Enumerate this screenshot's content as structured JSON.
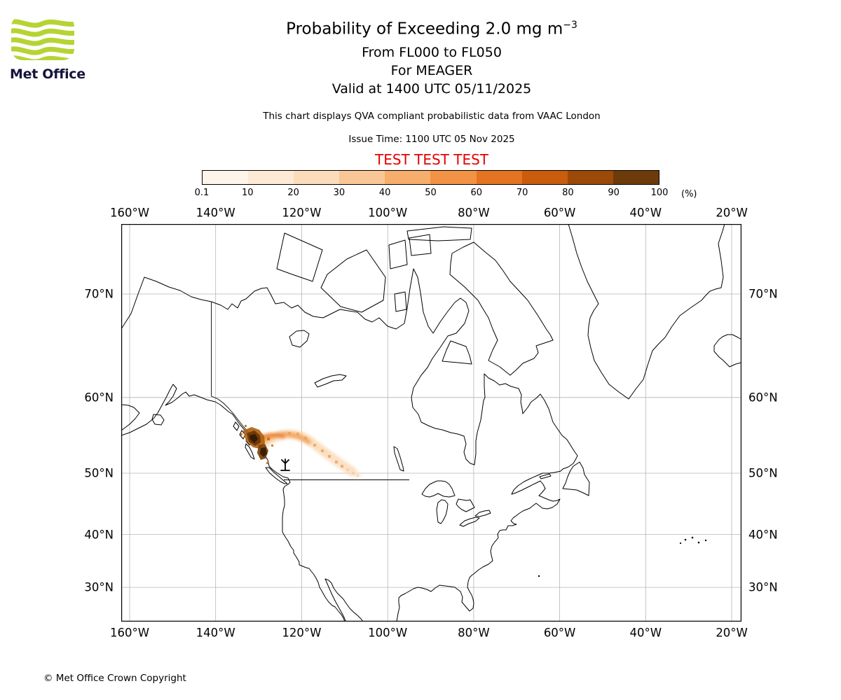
{
  "header": {
    "title_main": "Probability of Exceeding 2.0 mg m",
    "title_sup": "−3",
    "flight_levels": "From FL000 to FL050",
    "volcano": "For MEAGER",
    "valid": "Valid at 1400 UTC 05/11/2025",
    "note": "This chart displays QVA compliant probabilistic data from VAAC London",
    "issue_time": "Issue Time: 1100 UTC 05 Nov 2025",
    "test_banner": "TEST TEST TEST"
  },
  "logo": {
    "text": "Met Office",
    "wave_color": "#b5d434",
    "text_color": "#14143c"
  },
  "colorbar": {
    "labels": [
      "0.1",
      "10",
      "20",
      "30",
      "40",
      "50",
      "60",
      "70",
      "80",
      "90",
      "100"
    ],
    "unit": "(%)",
    "colors": [
      "#fdf5ea",
      "#fcead6",
      "#fbdcba",
      "#f9c795",
      "#f7ad6c",
      "#f29245",
      "#e57422",
      "#ca5c0e",
      "#9d4a08",
      "#6d3b09"
    ]
  },
  "map": {
    "top_labels": [
      "160°W",
      "140°W",
      "120°W",
      "100°W",
      "80°W",
      "60°W",
      "40°W",
      "20°W"
    ],
    "bottom_labels": [
      "160°W",
      "140°W",
      "120°W",
      "100°W",
      "80°W",
      "60°W",
      "40°W",
      "20°W"
    ],
    "left_labels": [
      "70°N",
      "60°N",
      "50°N",
      "40°N",
      "30°N"
    ],
    "right_labels": [
      "70°N",
      "60°N",
      "50°N",
      "40°N",
      "30°N"
    ]
  },
  "footer": {
    "copyright": "© Met Office Crown Copyright"
  }
}
